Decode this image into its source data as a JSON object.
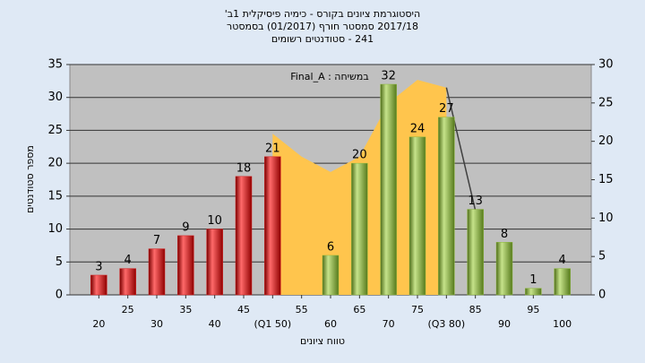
{
  "chart_data": {
    "type": "bar",
    "title": "היסטוגרמת ציונים בקורס - כימיה פיסיקלית 1ב'",
    "subtitle": "2017/18 סמסטר חורף (01/2017) בסמסטר",
    "subtitle2": "241 - סטודנטים רשומים",
    "annotation": "Final_A : במשיחה",
    "x_label": "טווח ציונים",
    "y_label": "מספר סטודנטים",
    "x": [
      20,
      25,
      30,
      35,
      40,
      45,
      50,
      55,
      60,
      65,
      70,
      75,
      80,
      85,
      90,
      95,
      100
    ],
    "values": [
      3,
      4,
      7,
      9,
      10,
      18,
      21,
      null,
      6,
      20,
      32,
      24,
      27,
      13,
      8,
      1,
      4
    ],
    "colors": [
      "#d42020",
      "#d42020",
      "#d42020",
      "#d42020",
      "#d42020",
      "#d42020",
      "#d42020",
      "#d42020",
      "#8cb83c",
      "#8cb83c",
      "#8cb83c",
      "#8cb83c",
      "#8cb83c",
      "#8cb83c",
      "#8cb83c",
      "#8cb83c",
      "#8cb83c"
    ],
    "overlays": [
      {
        "type": "area",
        "axis": "y2",
        "color": "#ffc54d",
        "x": [
          50,
          55,
          60,
          65,
          70,
          75,
          80
        ],
        "values": [
          21,
          18,
          16,
          18,
          25,
          28,
          27
        ]
      },
      {
        "type": "line",
        "axis": "y2",
        "color": "#404040",
        "x": [
          80,
          85
        ],
        "values": [
          27,
          11
        ]
      }
    ],
    "xlim": [
      15,
      105
    ],
    "xticks": [
      20,
      25,
      30,
      35,
      40,
      45,
      {
        "value": 50,
        "label": "(Q1 50)"
      },
      55,
      60,
      65,
      70,
      75,
      {
        "value": 80,
        "label": "(Q3 80)"
      },
      85,
      90,
      95,
      100
    ],
    "ylim": [
      0,
      35
    ],
    "yticks": [
      0,
      5,
      10,
      15,
      20,
      25,
      30,
      35
    ],
    "y2lim": [
      0,
      30
    ],
    "y2ticks": [
      0,
      5,
      10,
      15,
      20,
      25,
      30
    ],
    "grid": true
  }
}
